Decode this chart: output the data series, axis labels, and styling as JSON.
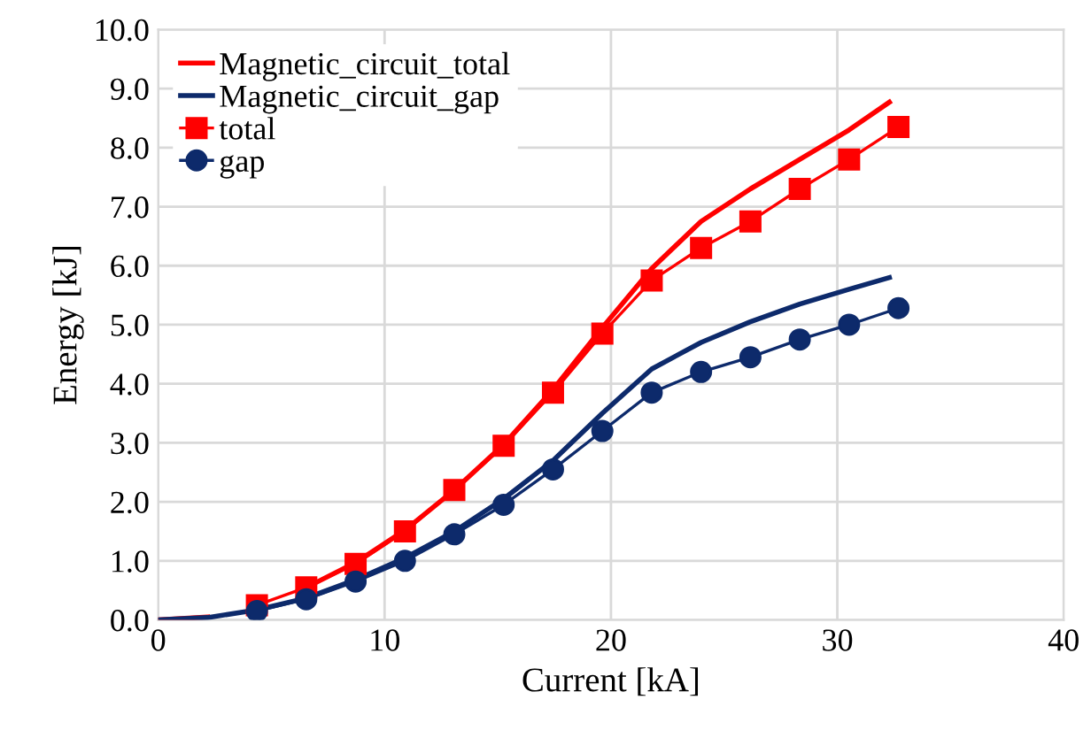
{
  "chart_data": {
    "type": "line",
    "xlabel": "Current [kA]",
    "ylabel": "Energy [kJ]",
    "xlim": [
      0,
      40
    ],
    "xticks": [
      0,
      10,
      20,
      30,
      40
    ],
    "ylim": [
      0,
      10
    ],
    "yticks": [
      {
        "value": 0,
        "label": "0.0"
      },
      {
        "value": 1,
        "label": "1.0"
      },
      {
        "value": 2,
        "label": "2.0"
      },
      {
        "value": 3,
        "label": "3.0"
      },
      {
        "value": 4,
        "label": "4.0"
      },
      {
        "value": 5,
        "label": "5.0"
      },
      {
        "value": 6,
        "label": "6.0"
      },
      {
        "value": 7,
        "label": "7.0"
      },
      {
        "value": 8,
        "label": "8.0"
      },
      {
        "value": 9,
        "label": "9.0"
      },
      {
        "value": 10,
        "label": "10.0"
      }
    ],
    "grid": true,
    "legend": "top left",
    "series": [
      {
        "name": "Magnetic_circuit_total",
        "color": "#ff0000",
        "marker": "none",
        "x": [
          0,
          2.18,
          4.36,
          6.54,
          8.72,
          10.9,
          13.08,
          15.26,
          17.44,
          19.62,
          21.8,
          23.98,
          26.16,
          28.34,
          30.52,
          32.3
        ],
        "values": [
          0,
          0.05,
          null,
          0.55,
          0.97,
          1.52,
          2.2,
          2.97,
          3.9,
          4.95,
          5.95,
          6.75,
          7.3,
          7.8,
          8.3,
          8.77
        ]
      },
      {
        "name": "Magnetic_circuit_gap",
        "color": "#0d2a6b",
        "marker": "none",
        "x": [
          0,
          2.18,
          4.36,
          6.54,
          8.72,
          10.9,
          13.08,
          15.26,
          17.44,
          19.62,
          21.8,
          23.98,
          26.16,
          28.34,
          30.52,
          32.3
        ],
        "values": [
          0,
          0.04,
          0.17,
          0.37,
          0.68,
          1.05,
          1.5,
          2.05,
          2.7,
          3.5,
          4.25,
          4.7,
          5.05,
          5.35,
          5.6,
          5.8
        ]
      },
      {
        "name": "total",
        "color": "#ff0000",
        "marker": "square",
        "x": [
          4.36,
          6.54,
          8.72,
          10.9,
          13.08,
          15.26,
          17.44,
          19.62,
          21.8,
          23.98,
          26.16,
          28.34,
          30.52,
          32.7
        ],
        "values": [
          0.25,
          0.55,
          0.95,
          1.5,
          2.2,
          2.95,
          3.85,
          4.85,
          5.75,
          6.3,
          6.75,
          7.3,
          7.8,
          8.35
        ]
      },
      {
        "name": "gap",
        "color": "#0d2a6b",
        "marker": "circle",
        "x": [
          4.36,
          6.54,
          8.72,
          10.9,
          13.08,
          15.26,
          17.44,
          19.62,
          21.8,
          23.98,
          26.16,
          28.34,
          30.52,
          32.7
        ],
        "values": [
          0.15,
          0.35,
          0.65,
          1.0,
          1.45,
          1.95,
          2.55,
          3.2,
          3.85,
          4.2,
          4.45,
          4.75,
          5.0,
          5.28
        ]
      }
    ]
  }
}
